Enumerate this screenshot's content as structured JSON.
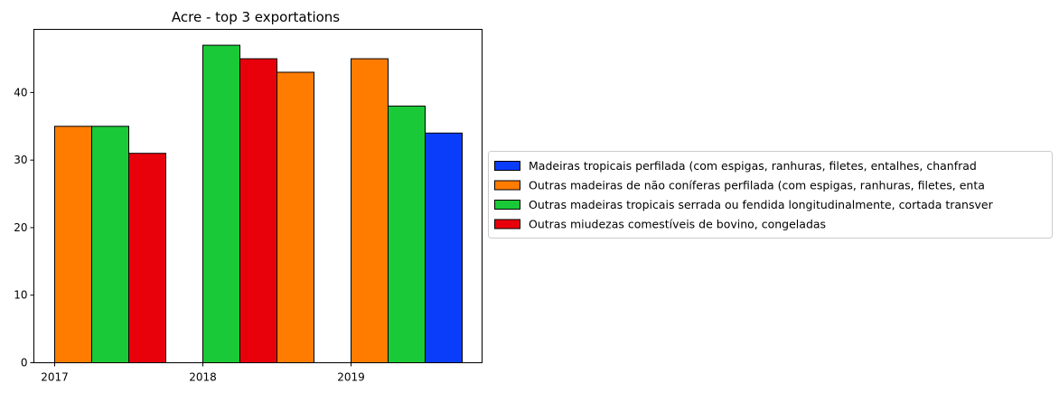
{
  "chart_data": {
    "type": "bar",
    "title": "Acre - top 3 exportations",
    "xlabel": "",
    "ylabel": "",
    "categories": [
      "2017",
      "2018",
      "2019"
    ],
    "ylim": [
      0,
      49.35
    ],
    "yticks": [
      0,
      10,
      20,
      30,
      40
    ],
    "grid": false,
    "legend_placement": "right",
    "series": [
      {
        "name": "Madeiras tropicais perfilada (com espigas, ranhuras, filetes, entalhes, chanfrad",
        "color": "#0a3dfa"
      },
      {
        "name": "Outras madeiras de não coníferas perfilada (com espigas, ranhuras, filetes, enta",
        "color": "#ff7c00"
      },
      {
        "name": "Outras madeiras tropicais serrada ou fendida longitudinalmente, cortada transver",
        "color": "#1ac938"
      },
      {
        "name": "Outras miudezas comestíveis de bovino, congeladas",
        "color": "#e8000b"
      }
    ],
    "bars": [
      {
        "category": "2017",
        "series": "Outras madeiras de não coníferas perfilada (com espigas, ranhuras, filetes, enta",
        "value": 35
      },
      {
        "category": "2017",
        "series": "Outras madeiras tropicais serrada ou fendida longitudinalmente, cortada transver",
        "value": 35
      },
      {
        "category": "2017",
        "series": "Outras miudezas comestíveis de bovino, congeladas",
        "value": 31
      },
      {
        "category": "2018",
        "series": "Outras madeiras tropicais serrada ou fendida longitudinalmente, cortada transver",
        "value": 47
      },
      {
        "category": "2018",
        "series": "Outras miudezas comestíveis de bovino, congeladas",
        "value": 45
      },
      {
        "category": "2018",
        "series": "Outras madeiras de não coníferas perfilada (com espigas, ranhuras, filetes, enta",
        "value": 43
      },
      {
        "category": "2019",
        "series": "Outras madeiras de não coníferas perfilada (com espigas, ranhuras, filetes, enta",
        "value": 45
      },
      {
        "category": "2019",
        "series": "Outras madeiras tropicais serrada ou fendida longitudinalmente, cortada transver",
        "value": 38
      },
      {
        "category": "2019",
        "series": "Madeiras tropicais perfilada (com espigas, ranhuras, filetes, entalhes, chanfrad",
        "value": 34
      }
    ]
  }
}
